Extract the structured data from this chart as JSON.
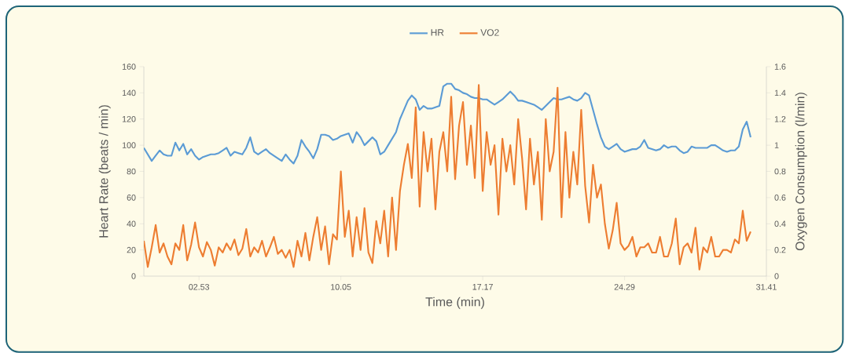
{
  "chart_data": {
    "type": "line",
    "xlabel": "Time (min)",
    "ylabel": "Heart Rate (beats / min)",
    "y2label": "Oxygen Consumption (l/min)",
    "legend": "top",
    "categories": [
      null,
      null,
      null,
      null,
      null,
      null,
      null,
      null,
      null,
      null,
      null,
      null,
      null,
      null,
      "02.53",
      null,
      null,
      null,
      null,
      null,
      null,
      null,
      null,
      null,
      null,
      null,
      null,
      null,
      null,
      null,
      null,
      null,
      null,
      null,
      null,
      null,
      null,
      null,
      null,
      null,
      null,
      null,
      null,
      null,
      null,
      null,
      null,
      null,
      null,
      null,
      "10.05",
      null,
      null,
      null,
      null,
      null,
      null,
      null,
      null,
      null,
      null,
      null,
      null,
      null,
      null,
      null,
      null,
      null,
      null,
      null,
      null,
      null,
      null,
      null,
      null,
      null,
      null,
      null,
      null,
      null,
      null,
      null,
      null,
      null,
      null,
      null,
      "17.17",
      null,
      null,
      null,
      null,
      null,
      null,
      null,
      null,
      null,
      null,
      null,
      null,
      null,
      null,
      null,
      null,
      null,
      null,
      null,
      null,
      null,
      null,
      null,
      null,
      null,
      null,
      null,
      null,
      null,
      null,
      null,
      null,
      null,
      null,
      null,
      "24.29",
      null,
      null,
      null,
      null,
      null,
      null,
      null,
      null,
      null,
      null,
      null,
      null,
      null,
      null,
      null,
      null,
      null,
      null,
      null,
      null,
      null,
      null,
      null,
      null,
      null,
      null,
      null,
      null,
      null,
      null,
      null,
      null,
      null,
      null,
      null,
      "31.41"
    ],
    "ylim": [
      0,
      160
    ],
    "yticks": [
      0,
      20,
      40,
      60,
      80,
      100,
      120,
      140,
      160
    ],
    "y2lim": [
      0,
      1.6
    ],
    "y2ticks": [
      0,
      0.2,
      0.4,
      0.6,
      0.8,
      1,
      1.2,
      1.4,
      1.6
    ],
    "series": [
      {
        "name": "HR",
        "color": "#5b9bd5",
        "values": [
          98,
          93,
          88,
          92,
          96,
          93,
          92,
          92,
          102,
          96,
          101,
          93,
          97,
          92,
          89,
          91,
          92,
          93,
          93,
          94,
          96,
          98,
          92,
          95,
          94,
          93,
          98,
          106,
          95,
          93,
          95,
          97,
          94,
          92,
          90,
          88,
          93,
          89,
          86,
          92,
          104,
          99,
          95,
          90,
          97,
          108,
          108,
          107,
          104,
          105,
          107,
          108,
          109,
          102,
          110,
          106,
          100,
          103,
          106,
          103,
          93,
          95,
          100,
          105,
          110,
          120,
          127,
          134,
          138,
          135,
          127,
          130,
          128,
          128,
          129,
          130,
          145,
          147,
          147,
          143,
          142,
          140,
          139,
          137,
          136,
          136,
          135,
          135,
          133,
          131,
          133,
          135,
          138,
          141,
          138,
          134,
          134,
          133,
          132,
          131,
          129,
          127,
          130,
          133,
          136,
          135,
          135,
          136,
          137,
          135,
          134,
          136,
          140,
          138,
          127,
          116,
          106,
          99,
          97,
          99,
          101,
          97,
          95,
          96,
          97,
          97,
          99,
          104,
          98,
          97,
          96,
          97,
          100,
          98,
          99,
          99,
          96,
          94,
          95,
          99,
          98,
          98,
          98,
          98,
          100,
          100,
          98,
          96,
          95,
          96,
          96,
          99,
          112,
          118,
          106,
          null,
          null,
          null,
          null
        ]
      },
      {
        "name": "VO2",
        "color": "#ed7d31",
        "axis": "y2",
        "values": [
          0.27,
          0.07,
          0.22,
          0.39,
          0.18,
          0.25,
          0.15,
          0.09,
          0.25,
          0.2,
          0.39,
          0.12,
          0.24,
          0.41,
          0.22,
          0.15,
          0.26,
          0.2,
          0.08,
          0.22,
          0.18,
          0.25,
          0.2,
          0.28,
          0.16,
          0.21,
          0.36,
          0.15,
          0.22,
          0.18,
          0.27,
          0.15,
          0.22,
          0.3,
          0.17,
          0.2,
          0.14,
          0.2,
          0.07,
          0.27,
          0.15,
          0.33,
          0.12,
          0.3,
          0.45,
          0.2,
          0.38,
          0.09,
          0.32,
          0.28,
          0.8,
          0.3,
          0.5,
          0.15,
          0.45,
          0.2,
          0.52,
          0.18,
          0.1,
          0.42,
          0.25,
          0.5,
          0.15,
          0.6,
          0.2,
          0.65,
          0.85,
          1.01,
          0.75,
          1.29,
          0.53,
          1.1,
          0.8,
          1.05,
          0.51,
          0.95,
          1.1,
          0.8,
          1.37,
          0.74,
          1.15,
          1.33,
          0.85,
          1.15,
          0.75,
          1.46,
          0.65,
          1.1,
          0.85,
          1.0,
          0.47,
          1.05,
          0.8,
          1.0,
          0.7,
          1.2,
          0.9,
          0.51,
          1.05,
          0.7,
          0.95,
          0.43,
          1.2,
          0.8,
          0.95,
          1.44,
          0.45,
          1.1,
          0.6,
          0.95,
          0.7,
          1.27,
          0.69,
          0.41,
          0.85,
          0.6,
          0.7,
          0.4,
          0.21,
          0.35,
          0.56,
          0.25,
          0.2,
          0.23,
          0.3,
          0.15,
          0.22,
          0.22,
          0.25,
          0.18,
          0.18,
          0.3,
          0.15,
          0.15,
          0.25,
          0.44,
          0.09,
          0.22,
          0.25,
          0.18,
          0.37,
          0.05,
          0.22,
          0.18,
          0.3,
          0.15,
          0.15,
          0.2,
          0.2,
          0.18,
          0.28,
          0.25,
          0.5,
          0.27,
          0.34,
          null,
          null,
          null,
          null
        ]
      }
    ]
  }
}
